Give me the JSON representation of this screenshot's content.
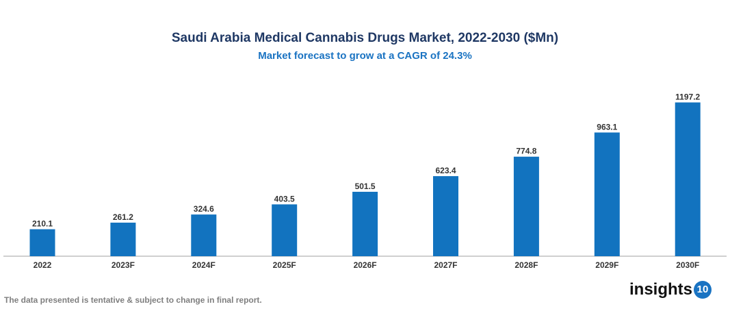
{
  "chart_data": {
    "type": "bar",
    "title": "Saudi Arabia Medical Cannabis Drugs Market, 2022-2030 ($Mn)",
    "subtitle": "Market forecast to grow at a CAGR of 24.3%",
    "categories": [
      "2022",
      "2023F",
      "2024F",
      "2025F",
      "2026F",
      "2027F",
      "2028F",
      "2029F",
      "2030F"
    ],
    "values": [
      210.1,
      261.2,
      324.6,
      403.5,
      501.5,
      623.4,
      774.8,
      963.1,
      1197.2
    ],
    "xlabel": "",
    "ylabel": "",
    "grid": false,
    "bar_color": "#1273bf"
  },
  "footer": "The data presented is tentative & subject to change in final report.",
  "logo": {
    "text": "insights",
    "badge": "10"
  }
}
